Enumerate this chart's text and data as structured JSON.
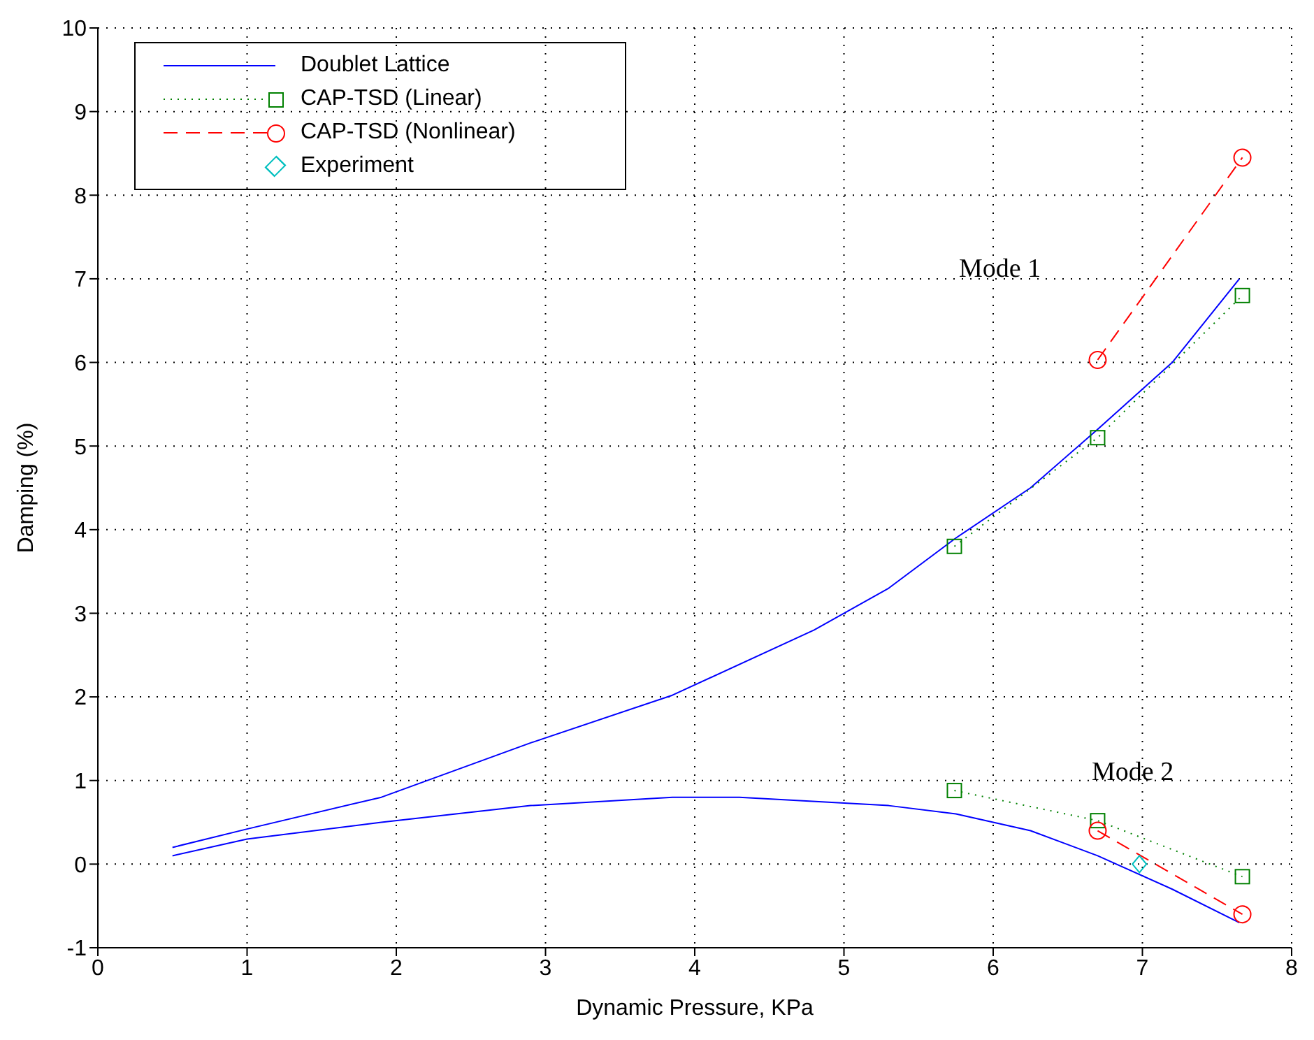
{
  "chart_data": {
    "type": "line",
    "xlabel": "Dynamic Pressure, KPa",
    "ylabel": "Damping (%)",
    "xlim": [
      0,
      8
    ],
    "xticks": [
      0,
      1,
      2,
      3,
      4,
      5,
      6,
      7,
      8
    ],
    "ylim": [
      -1,
      10
    ],
    "yticks": [
      -1,
      0,
      1,
      2,
      3,
      4,
      5,
      6,
      7,
      8,
      9,
      10
    ],
    "grid": true,
    "legend": "top left",
    "series": [
      {
        "name": "Doublet Lattice",
        "color": "#0000ff",
        "marker": "none",
        "line_style": "solid",
        "x": [
          0.5,
          1.0,
          1.9,
          2.9,
          3.85,
          4.8,
          5.3,
          5.75,
          6.25,
          6.7,
          7.2,
          7.65
        ],
        "values": [
          0.2,
          0.42,
          0.8,
          1.45,
          2.02,
          2.8,
          3.3,
          3.9,
          4.5,
          5.2,
          6.0,
          7.0
        ]
      },
      {
        "color": "#0000ff",
        "marker": "none",
        "line_style": "solid",
        "x": [
          0.5,
          1.0,
          1.9,
          2.9,
          3.85,
          4.3,
          5.3,
          5.75,
          6.25,
          6.7,
          7.2,
          7.65
        ],
        "values": [
          0.1,
          0.3,
          0.5,
          0.7,
          0.8,
          0.8,
          0.7,
          0.6,
          0.4,
          0.1,
          -0.3,
          -0.7
        ]
      },
      {
        "name": "CAP-TSD (Linear)",
        "color": "#008000",
        "marker": "square",
        "line_style": "dotted",
        "x": [
          5.74,
          6.7,
          7.67
        ],
        "values": [
          3.8,
          5.1,
          6.8
        ]
      },
      {
        "color": "#008000",
        "marker": "square",
        "line_style": "dotted",
        "x": [
          5.74,
          6.7,
          7.67
        ],
        "values": [
          0.88,
          0.52,
          -0.15
        ]
      },
      {
        "name": "CAP-TSD (Nonlinear)",
        "color": "#ff0000",
        "marker": "circle",
        "line_style": "dashed",
        "x": [
          6.7,
          7.67
        ],
        "values": [
          6.03,
          8.45
        ]
      },
      {
        "color": "#ff0000",
        "marker": "circle",
        "line_style": "dashed",
        "x": [
          6.7,
          7.67
        ],
        "values": [
          0.4,
          -0.6
        ]
      },
      {
        "name": "Experiment",
        "color": "#00bfbf",
        "type": "scatter",
        "marker": "diamond",
        "x": [
          6.98
        ],
        "values": [
          0.0
        ]
      }
    ],
    "annotations": [
      "Mode 1",
      "Mode 2"
    ]
  }
}
